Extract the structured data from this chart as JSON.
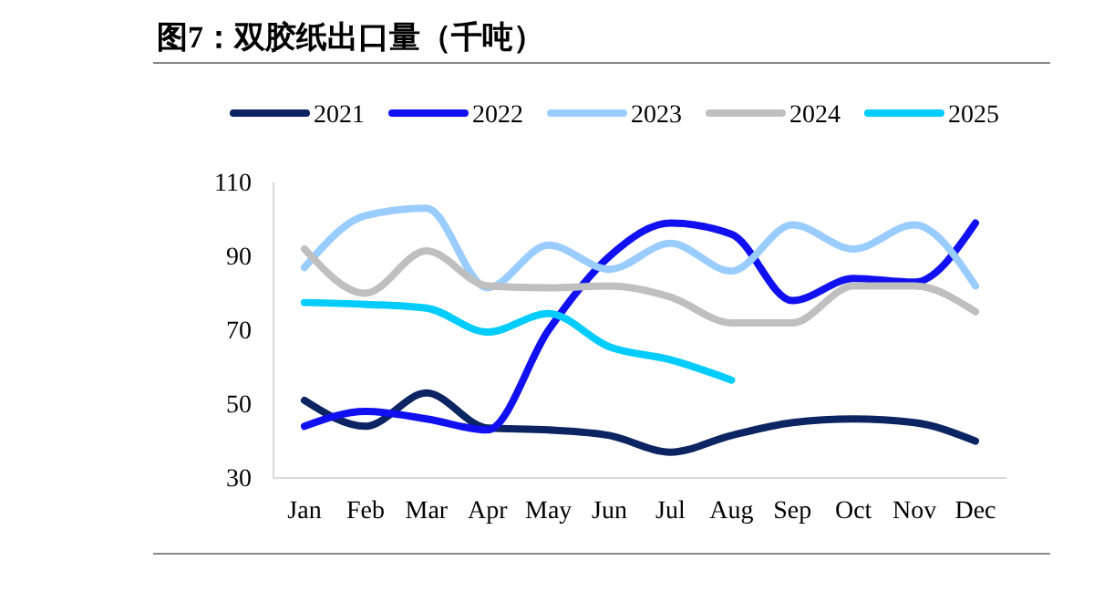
{
  "chart_data": {
    "type": "line",
    "title": "图7：双胶纸出口量（千吨）",
    "categories": [
      "Jan",
      "Feb",
      "Mar",
      "Apr",
      "May",
      "Jun",
      "Jul",
      "Aug",
      "Sep",
      "Oct",
      "Nov",
      "Dec"
    ],
    "series": [
      {
        "name": "2021",
        "color": "#0d2462",
        "values": [
          51,
          44,
          53,
          43.5,
          43,
          41.5,
          37,
          41.5,
          45,
          46,
          45,
          40
        ]
      },
      {
        "name": "2022",
        "color": "#1010f0",
        "values": [
          44,
          48,
          46,
          43,
          70,
          90,
          99,
          96,
          78,
          84,
          83,
          99
        ]
      },
      {
        "name": "2023",
        "color": "#99ccff",
        "values": [
          87,
          101,
          103,
          81.5,
          93,
          86.5,
          93.5,
          86,
          98.5,
          92,
          98.5,
          82
        ]
      },
      {
        "name": "2024",
        "color": "#bfbfbf",
        "values": [
          92,
          80,
          91.5,
          82,
          81.5,
          82,
          79,
          72,
          72,
          82,
          82,
          75
        ]
      },
      {
        "name": "2025",
        "color": "#00ccff",
        "values": [
          77.5,
          77,
          76,
          69.5,
          74.5,
          65.5,
          62,
          56.5,
          null,
          null,
          null,
          null
        ]
      }
    ],
    "ylim": [
      30,
      110
    ],
    "yticks": [
      30,
      50,
      70,
      90,
      110
    ],
    "grid": false,
    "legend": "top",
    "marker": "none",
    "line_style": "solid"
  }
}
